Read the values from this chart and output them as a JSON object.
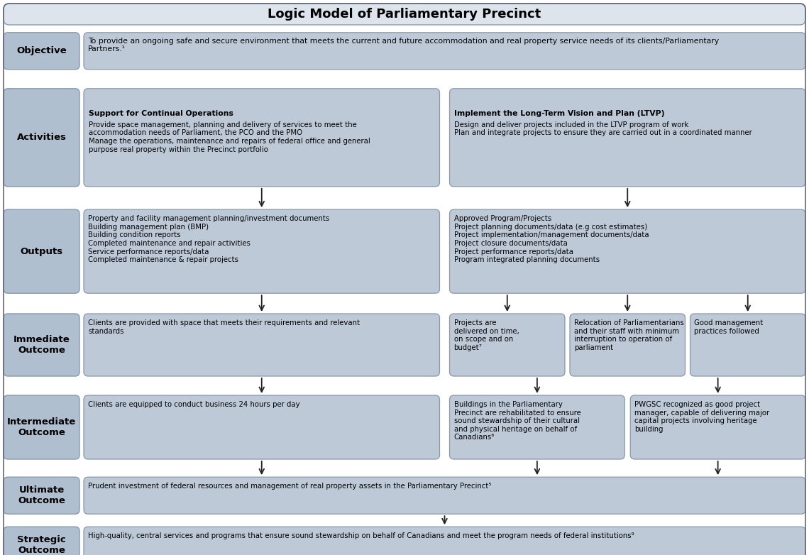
{
  "title": "Logic Model of Parliamentary Precinct",
  "bg_color": "#ffffff",
  "box_fill": "#bdc9d7",
  "box_edge": "#8899aa",
  "label_fill": "#b0bfcf",
  "text_color": "#000000",
  "title_fill": "#dde4ec",
  "title_edge": "#8899aa",
  "objective_text": "To provide an ongoing safe and secure environment that meets the current and future accommodation and real property service needs of its clients/Parliamentary\nPartners.¹",
  "activities_left_title": "Support for Continual Operations",
  "activities_left_body": "Provide space management, planning and delivery of services to meet the\naccommodation needs of Parliament, the PCO and the PMO\nManage the operations, maintenance and repairs of federal office and general\npurpose real property within the Precinct portfolio",
  "activities_right_title": "Implement the Long-Term Vision and Plan (LTVP)",
  "activities_right_body": "Design and deliver projects included in the LTVP program of work\nPlan and integrate projects to ensure they are carried out in a coordinated manner",
  "outputs_left_text": "Property and facility management planning/investment documents\nBuilding management plan (BMP)\nBuilding condition reports\nCompleted maintenance and repair activities\nService performance reports/data\nCompleted maintenance & repair projects",
  "outputs_right_text": "Approved Program/Projects\nProject planning documents/data (e.g cost estimates)\nProject implementation/management documents/data\nProject closure documents/data\nProject performance reports/data\nProgram integrated planning documents",
  "imm_left_text": "Clients are provided with space that meets their requirements and relevant\nstandards",
  "imm_mid1_text": "Projects are\ndelivered on time,\non scope and on\nbudget⁷",
  "imm_mid2_text": "Relocation of Parliamentarians\nand their staff with minimum\ninterruption to operation of\nparliament",
  "imm_right_text": "Good management\npractices followed",
  "int_left_text": "Clients are equipped to conduct business 24 hours per day",
  "int_mid_text": "Buildings in the Parliamentary\nPrecinct are rehabilitated to ensure\nsound stewardship of their cultural\nand physical heritage on behalf of\nCanadians⁶",
  "int_right_text": "PWGSC recognized as good project\nmanager, capable of delivering major\ncapital projects involving heritage\nbuilding",
  "ultimate_text": "Prudent investment of federal resources and management of real property assets in the Parliamentary Precinct⁵",
  "strategic_text": "High-quality, central services and programs that ensure sound stewardship on behalf of Canadians and meet the program needs of federal institutions⁹"
}
